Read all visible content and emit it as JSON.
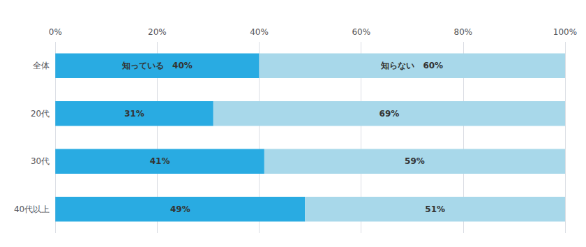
{
  "chart_data": {
    "type": "bar",
    "orientation": "horizontal",
    "stacked": true,
    "categories": [
      "全体",
      "20代",
      "30代",
      "40代以上"
    ],
    "series": [
      {
        "name": "知っている",
        "color": "#29ABE2",
        "values": [
          40,
          31,
          41,
          49
        ],
        "value_labels": [
          "知っている　40%",
          "31%",
          "41%",
          "49%"
        ]
      },
      {
        "name": "知らない",
        "color": "#A8D8EA",
        "values": [
          60,
          69,
          59,
          51
        ],
        "value_labels": [
          "知らない　60%",
          "69%",
          "59%",
          "51%"
        ]
      }
    ],
    "xlim": [
      0,
      100
    ],
    "xticks": [
      {
        "value": 0,
        "label": "0%"
      },
      {
        "value": 20,
        "label": "20%"
      },
      {
        "value": 40,
        "label": "40%"
      },
      {
        "value": 60,
        "label": "60%"
      },
      {
        "value": 80,
        "label": "80%"
      },
      {
        "value": 100,
        "label": "100%"
      }
    ],
    "grid": true,
    "data_labels": true
  }
}
